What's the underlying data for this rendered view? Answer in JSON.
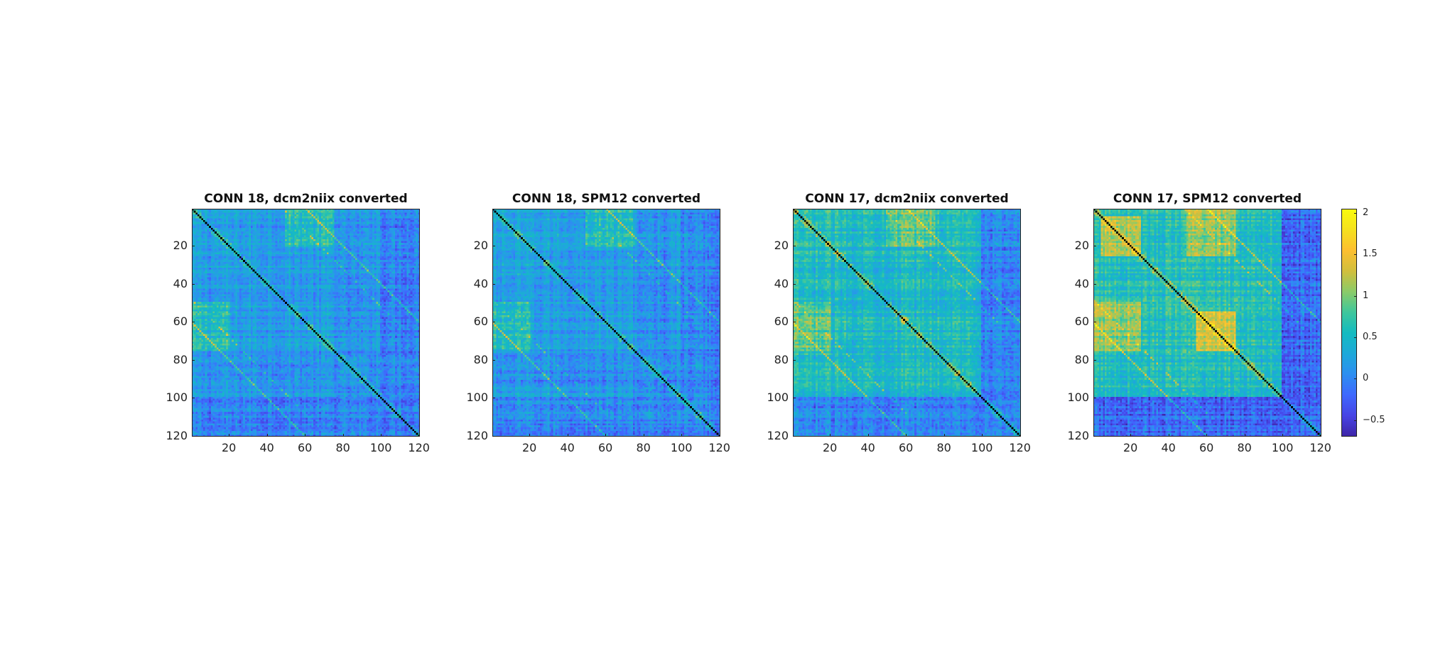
{
  "colors": {
    "parula": [
      "#3e26a8",
      "#4744e5",
      "#3f69fe",
      "#2d8ff1",
      "#1ea9da",
      "#14bbc1",
      "#3fc79d",
      "#8bcb69",
      "#d1bf3d",
      "#fdbf31",
      "#f5e11e",
      "#f9fb0e"
    ]
  },
  "chart_data": [
    {
      "type": "heatmap",
      "title": "CONN 18, dcm2niix converted",
      "n": 120,
      "xticks": [
        20,
        40,
        60,
        80,
        100,
        120
      ],
      "yticks": [
        20,
        40,
        60,
        80,
        100,
        120
      ],
      "clim": [
        -0.7,
        2.05
      ],
      "diagonal": "black",
      "baseline": 0.2,
      "blocks": [
        {
          "rows": [
            50,
            75
          ],
          "cols": [
            1,
            20
          ],
          "value": 0.55
        },
        {
          "rows": [
            1,
            20
          ],
          "cols": [
            50,
            75
          ],
          "value": 0.55
        },
        {
          "rows": [
            78,
            92
          ],
          "cols": [
            1,
            120
          ],
          "value": 0.05
        },
        {
          "rows": [
            100,
            120
          ],
          "cols": [
            1,
            120
          ],
          "value": 0.0
        },
        {
          "rows": [
            1,
            120
          ],
          "cols": [
            100,
            120
          ],
          "value": 0.0
        }
      ]
    },
    {
      "type": "heatmap",
      "title": "CONN 18, SPM12 converted",
      "n": 120,
      "xticks": [
        20,
        40,
        60,
        80,
        100,
        120
      ],
      "yticks": [
        20,
        40,
        60,
        80,
        100,
        120
      ],
      "clim": [
        -0.7,
        2.05
      ],
      "diagonal": "black",
      "baseline": 0.2,
      "blocks": [
        {
          "rows": [
            50,
            75
          ],
          "cols": [
            1,
            20
          ],
          "value": 0.55
        },
        {
          "rows": [
            1,
            20
          ],
          "cols": [
            50,
            75
          ],
          "value": 0.55
        },
        {
          "rows": [
            78,
            92
          ],
          "cols": [
            1,
            120
          ],
          "value": 0.05
        },
        {
          "rows": [
            100,
            120
          ],
          "cols": [
            1,
            120
          ],
          "value": 0.0
        },
        {
          "rows": [
            1,
            120
          ],
          "cols": [
            100,
            120
          ],
          "value": 0.0
        }
      ]
    },
    {
      "type": "heatmap",
      "title": "CONN 17, dcm2niix converted",
      "n": 120,
      "xticks": [
        20,
        40,
        60,
        80,
        100,
        120
      ],
      "yticks": [
        20,
        40,
        60,
        80,
        100,
        120
      ],
      "clim": [
        -0.7,
        2.05
      ],
      "diagonal": "black",
      "baseline": 0.55,
      "blocks": [
        {
          "rows": [
            50,
            75
          ],
          "cols": [
            1,
            20
          ],
          "value": 0.85
        },
        {
          "rows": [
            1,
            20
          ],
          "cols": [
            50,
            75
          ],
          "value": 0.85
        },
        {
          "rows": [
            100,
            120
          ],
          "cols": [
            1,
            120
          ],
          "value": 0.05
        },
        {
          "rows": [
            1,
            120
          ],
          "cols": [
            100,
            120
          ],
          "value": 0.0
        }
      ]
    },
    {
      "type": "heatmap",
      "title": "CONN 17, SPM12 converted",
      "n": 120,
      "xticks": [
        20,
        40,
        60,
        80,
        100,
        120
      ],
      "yticks": [
        20,
        40,
        60,
        80,
        100,
        120
      ],
      "clim": [
        -0.7,
        2.05
      ],
      "diagonal": "black",
      "baseline": 0.6,
      "blocks": [
        {
          "rows": [
            5,
            25
          ],
          "cols": [
            5,
            25
          ],
          "value": 1.25
        },
        {
          "rows": [
            50,
            75
          ],
          "cols": [
            1,
            25
          ],
          "value": 1.1
        },
        {
          "rows": [
            1,
            25
          ],
          "cols": [
            50,
            75
          ],
          "value": 1.1
        },
        {
          "rows": [
            55,
            75
          ],
          "cols": [
            55,
            75
          ],
          "value": 1.3
        },
        {
          "rows": [
            100,
            120
          ],
          "cols": [
            1,
            120
          ],
          "value": -0.2
        },
        {
          "rows": [
            1,
            120
          ],
          "cols": [
            100,
            120
          ],
          "value": -0.2
        }
      ]
    }
  ],
  "colorbar": {
    "ticks": [
      {
        "value": 2,
        "label": "2"
      },
      {
        "value": 1.5,
        "label": "1.5"
      },
      {
        "value": 1,
        "label": "1"
      },
      {
        "value": 0.5,
        "label": "0.5"
      },
      {
        "value": 0,
        "label": "0"
      },
      {
        "value": -0.5,
        "label": "−0.5"
      }
    ],
    "clim": [
      -0.7,
      2.05
    ]
  }
}
